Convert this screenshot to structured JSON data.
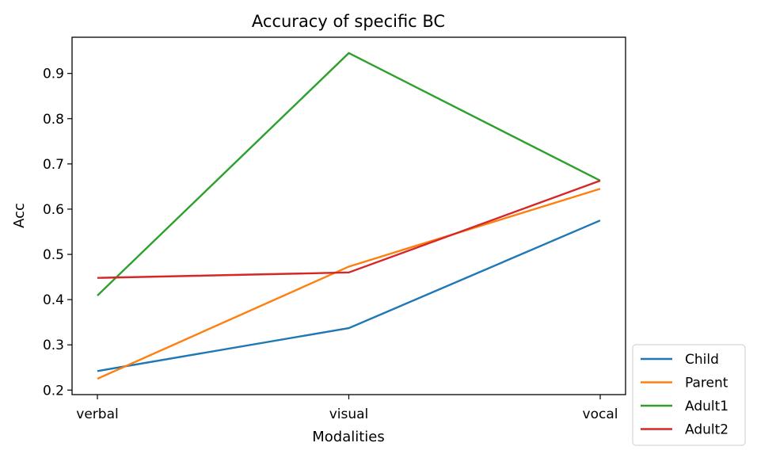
{
  "chart_data": {
    "type": "line",
    "title": "Accuracy of specific BC",
    "xlabel": "Modalities",
    "ylabel": "Acc",
    "categories": [
      "verbal",
      "visual",
      "vocal"
    ],
    "ylim": [
      0.19,
      0.98
    ],
    "yticks": [
      "0.2",
      "0.3",
      "0.4",
      "0.5",
      "0.6",
      "0.7",
      "0.8",
      "0.9"
    ],
    "grid": false,
    "legend_position": "outside-bottom-right",
    "series": [
      {
        "name": "Child",
        "color": "#1f77b4",
        "values": [
          0.242,
          0.337,
          0.575
        ]
      },
      {
        "name": "Parent",
        "color": "#ff7f0e",
        "values": [
          0.225,
          0.473,
          0.645
        ]
      },
      {
        "name": "Adult1",
        "color": "#2ca02c",
        "values": [
          0.409,
          0.945,
          0.663
        ]
      },
      {
        "name": "Adult2",
        "color": "#d62728",
        "values": [
          0.448,
          0.46,
          0.663
        ]
      }
    ]
  }
}
